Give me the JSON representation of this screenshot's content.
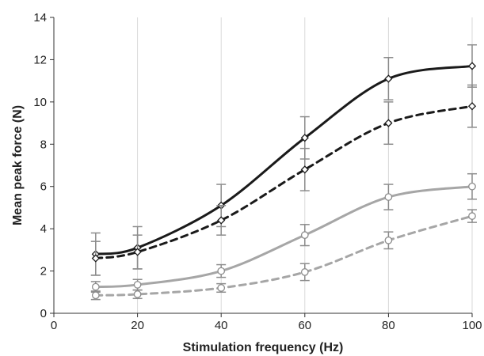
{
  "chart_data": {
    "type": "line",
    "title": "",
    "xlabel": "Stimulation frequency (Hz)",
    "ylabel": "Mean peak force (N)",
    "xlim": [
      0,
      100
    ],
    "ylim": [
      0,
      14
    ],
    "x_ticks": [
      0,
      20,
      40,
      60,
      80,
      100
    ],
    "y_ticks": [
      0,
      2,
      4,
      6,
      8,
      10,
      12,
      14
    ],
    "grid": "vertical",
    "legend": "none",
    "x": [
      10,
      20,
      40,
      60,
      80,
      100
    ],
    "series": [
      {
        "values": [
          2.8,
          3.1,
          5.1,
          8.3,
          11.1,
          11.7
        ],
        "errors": [
          1.0,
          1.0,
          1.0,
          1.0,
          1.0,
          1.0
        ],
        "color": "#1a1a1a",
        "dash": "solid",
        "marker": "diamond"
      },
      {
        "values": [
          2.6,
          2.9,
          4.4,
          6.8,
          9.0,
          9.8
        ],
        "errors": [
          0.8,
          0.8,
          0.7,
          1.0,
          1.0,
          1.0
        ],
        "color": "#1a1a1a",
        "dash": "dashed",
        "marker": "diamond"
      },
      {
        "values": [
          1.25,
          1.35,
          2.0,
          3.7,
          5.5,
          6.0
        ],
        "errors": [
          0.25,
          0.25,
          0.3,
          0.5,
          0.6,
          0.6
        ],
        "color": "#a6a6a6",
        "dash": "solid",
        "marker": "circle"
      },
      {
        "values": [
          0.85,
          0.9,
          1.2,
          1.95,
          3.45,
          4.6
        ],
        "errors": [
          0.2,
          0.2,
          0.2,
          0.4,
          0.4,
          0.3
        ],
        "color": "#a6a6a6",
        "dash": "dashed",
        "marker": "circle"
      }
    ]
  }
}
